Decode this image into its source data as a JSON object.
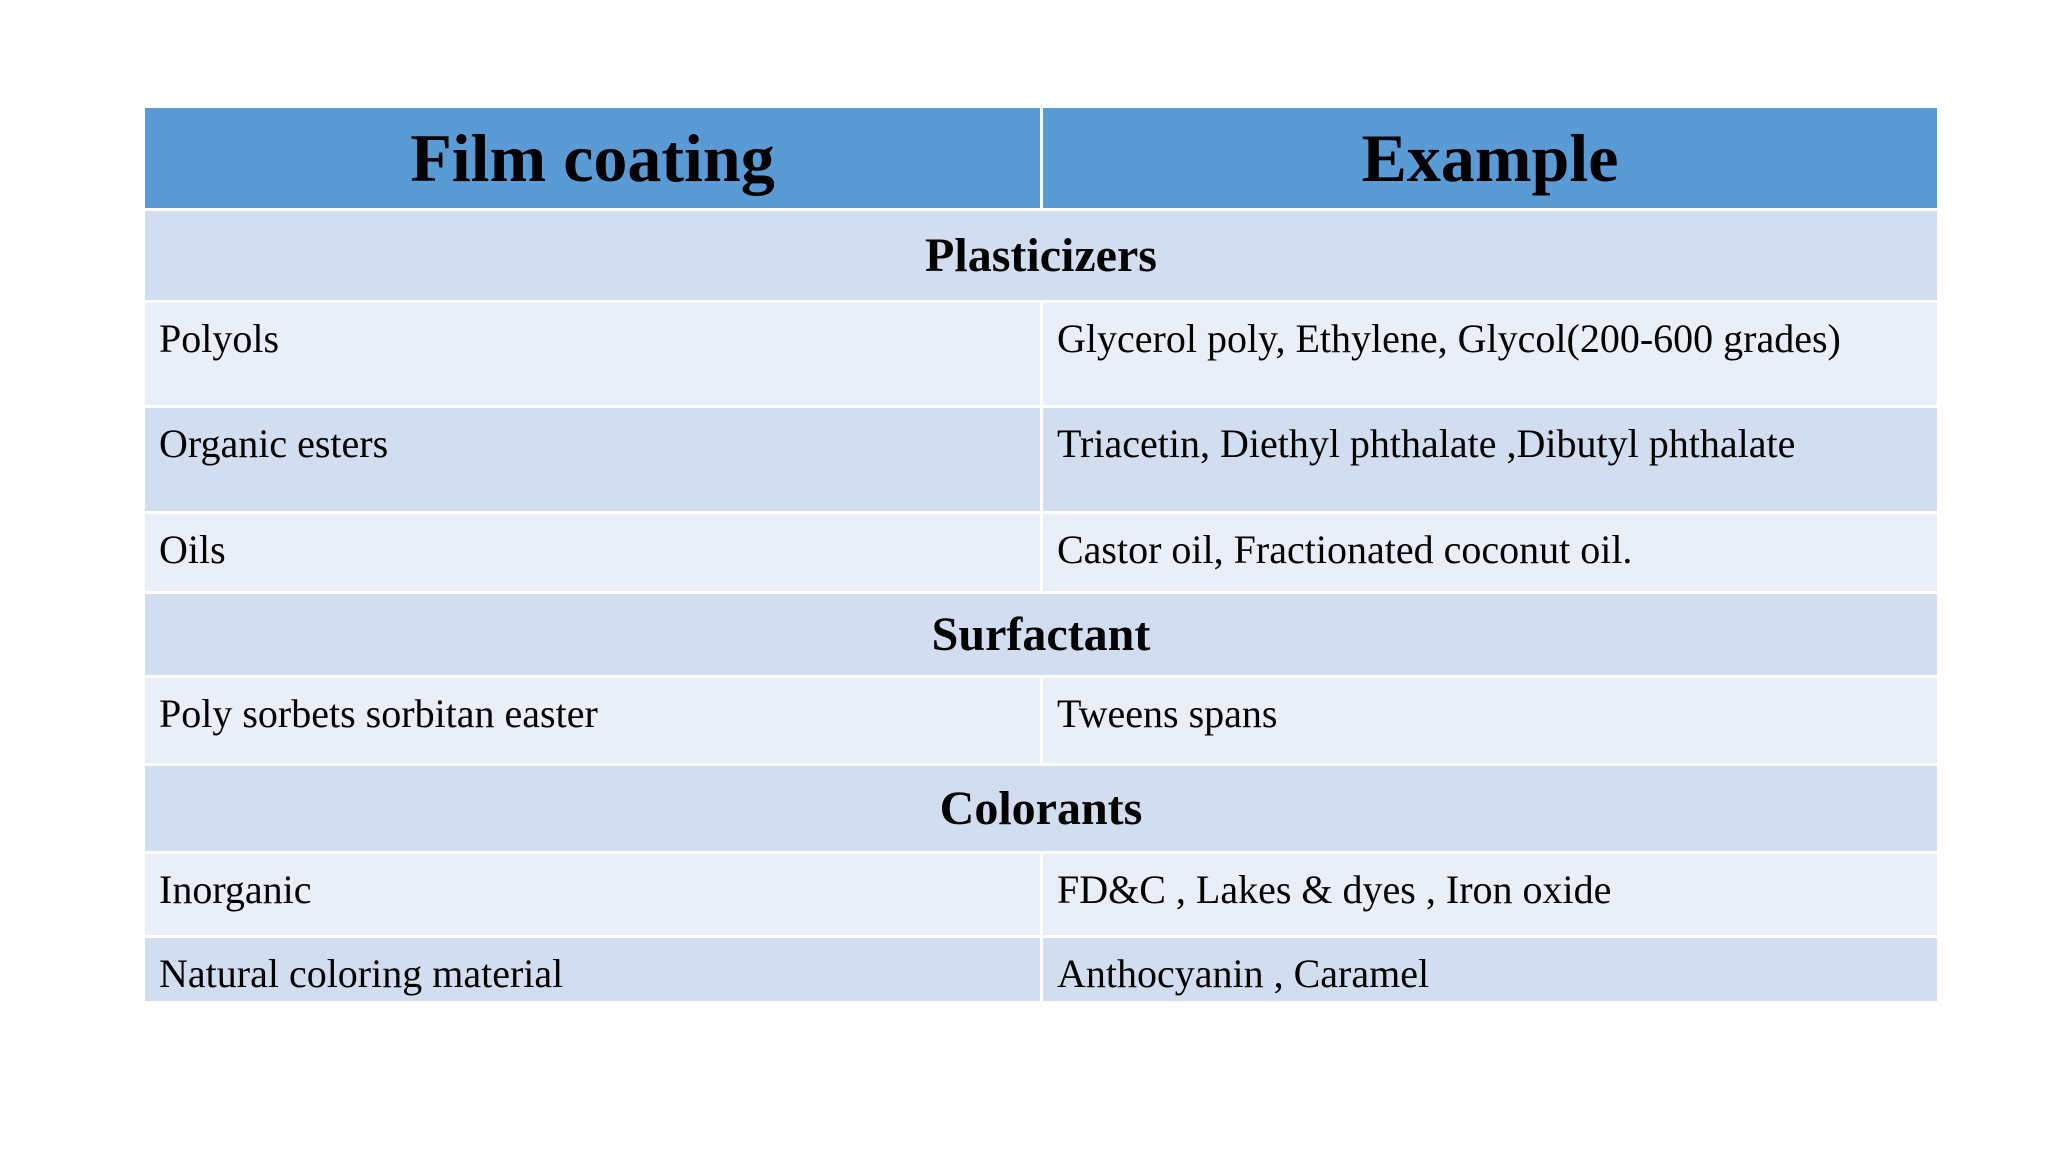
{
  "table": {
    "headers": [
      "Film coating",
      "Example"
    ],
    "sections": [
      {
        "title": "Plasticizers",
        "rows": [
          {
            "item": "Polyols",
            "example": "Glycerol poly, Ethylene, Glycol(200-600 grades)"
          },
          {
            "item": "Organic esters",
            "example": "Triacetin, Diethyl phthalate ,Dibutyl phthalate"
          },
          {
            "item": "Oils",
            "example": "Castor oil, Fractionated coconut oil."
          }
        ]
      },
      {
        "title": "Surfactant",
        "rows": [
          {
            "item": "Poly sorbets sorbitan easter",
            "example": "Tweens spans"
          }
        ]
      },
      {
        "title": "Colorants",
        "rows": [
          {
            "item": "Inorganic",
            "example": "FD&C , Lakes & dyes , Iron oxide"
          },
          {
            "item": "Natural coloring material",
            "example": "Anthocyanin , Caramel"
          }
        ]
      }
    ]
  },
  "colors": {
    "header_bg": "#5b9bd5",
    "band_dark": "#d2deef",
    "band_light": "#eaeff7"
  }
}
